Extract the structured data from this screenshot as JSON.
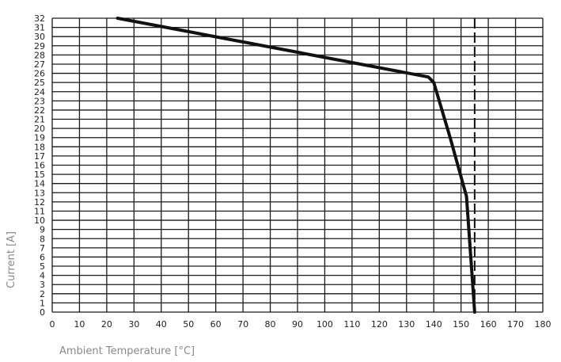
{
  "chart_data": {
    "type": "line",
    "title": "",
    "xlabel": "Ambient Temperature [°C]",
    "ylabel": "Current [A]",
    "xlim": [
      0,
      180
    ],
    "ylim": [
      0,
      32
    ],
    "x_ticks": [
      0,
      10,
      20,
      30,
      40,
      50,
      60,
      70,
      80,
      90,
      100,
      110,
      120,
      130,
      140,
      150,
      160,
      170,
      180
    ],
    "y_ticks": [
      0,
      1,
      2,
      3,
      4,
      5,
      6,
      7,
      8,
      9,
      10,
      11,
      12,
      13,
      14,
      15,
      16,
      17,
      18,
      19,
      20,
      21,
      22,
      23,
      24,
      25,
      26,
      27,
      28,
      29,
      30,
      31,
      32
    ],
    "grid": true,
    "series": [
      {
        "style": "solid",
        "color": "#111111",
        "x": [
          24,
          138,
          140,
          146,
          152,
          155
        ],
        "y": [
          32,
          25.6,
          25,
          19,
          12.6,
          0
        ]
      }
    ],
    "reference_lines": [
      {
        "orientation": "vertical",
        "x": 155,
        "style": "dashed",
        "color": "#111111"
      }
    ]
  }
}
